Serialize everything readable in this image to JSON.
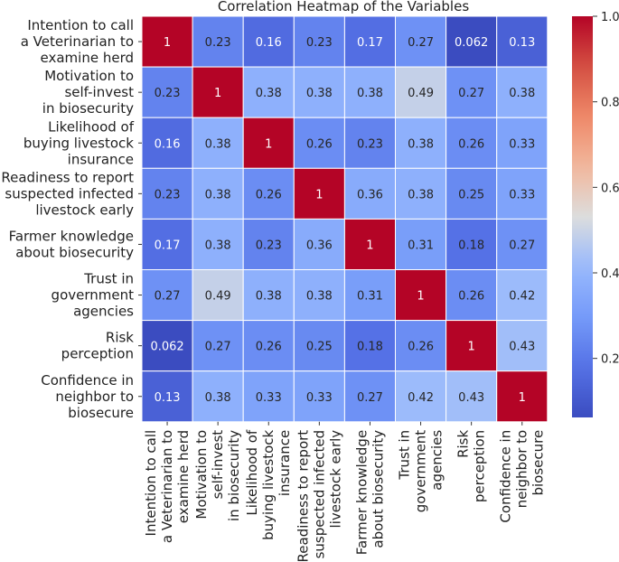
{
  "chart_data": {
    "type": "heatmap",
    "title": "Correlation Heatmap of the Variables",
    "row_labels": [
      [
        "Intention to call",
        "a Veterinarian to",
        "examine herd"
      ],
      [
        "Motivation to",
        "self-invest",
        "in biosecurity"
      ],
      [
        "Likelihood of",
        "buying livestock",
        "insurance"
      ],
      [
        "Readiness to report",
        "suspected infected",
        "livestock early"
      ],
      [
        "Farmer knowledge",
        "about biosecurity"
      ],
      [
        "Trust in",
        "government",
        "agencies"
      ],
      [
        "Risk",
        "perception"
      ],
      [
        "Confidence in",
        "neighbor to",
        "biosecure"
      ]
    ],
    "col_labels": [
      [
        "Intention to call",
        "a Veterinarian to",
        "examine herd"
      ],
      [
        "Motivation to",
        "self-invest",
        "in biosecurity"
      ],
      [
        "Likelihood of",
        "buying livestock",
        "insurance"
      ],
      [
        "Readiness to report",
        "suspected infected",
        "livestock early"
      ],
      [
        "Farmer knowledge",
        "about biosecurity"
      ],
      [
        "Trust in",
        "government",
        "agencies"
      ],
      [
        "Risk",
        "perception"
      ],
      [
        "Confidence in",
        "neighbor to",
        "biosecure"
      ]
    ],
    "values": [
      [
        1,
        0.23,
        0.16,
        0.23,
        0.17,
        0.27,
        0.062,
        0.13
      ],
      [
        0.23,
        1,
        0.38,
        0.38,
        0.38,
        0.49,
        0.27,
        0.38
      ],
      [
        0.16,
        0.38,
        1,
        0.26,
        0.23,
        0.38,
        0.26,
        0.33
      ],
      [
        0.23,
        0.38,
        0.26,
        1,
        0.36,
        0.38,
        0.25,
        0.33
      ],
      [
        0.17,
        0.38,
        0.23,
        0.36,
        1,
        0.31,
        0.18,
        0.27
      ],
      [
        0.27,
        0.49,
        0.38,
        0.38,
        0.31,
        1,
        0.26,
        0.42
      ],
      [
        0.062,
        0.27,
        0.26,
        0.25,
        0.18,
        0.26,
        1,
        0.43
      ],
      [
        0.13,
        0.38,
        0.33,
        0.33,
        0.27,
        0.42,
        0.43,
        1
      ]
    ],
    "colormap": "coolwarm",
    "colorbar": {
      "min": 0.062,
      "max": 1.0,
      "ticks": [
        0.2,
        0.4,
        0.6,
        0.8,
        1.0
      ],
      "tick_labels": [
        "0.2",
        "0.4",
        "0.6",
        "0.8",
        "1.0"
      ]
    }
  }
}
